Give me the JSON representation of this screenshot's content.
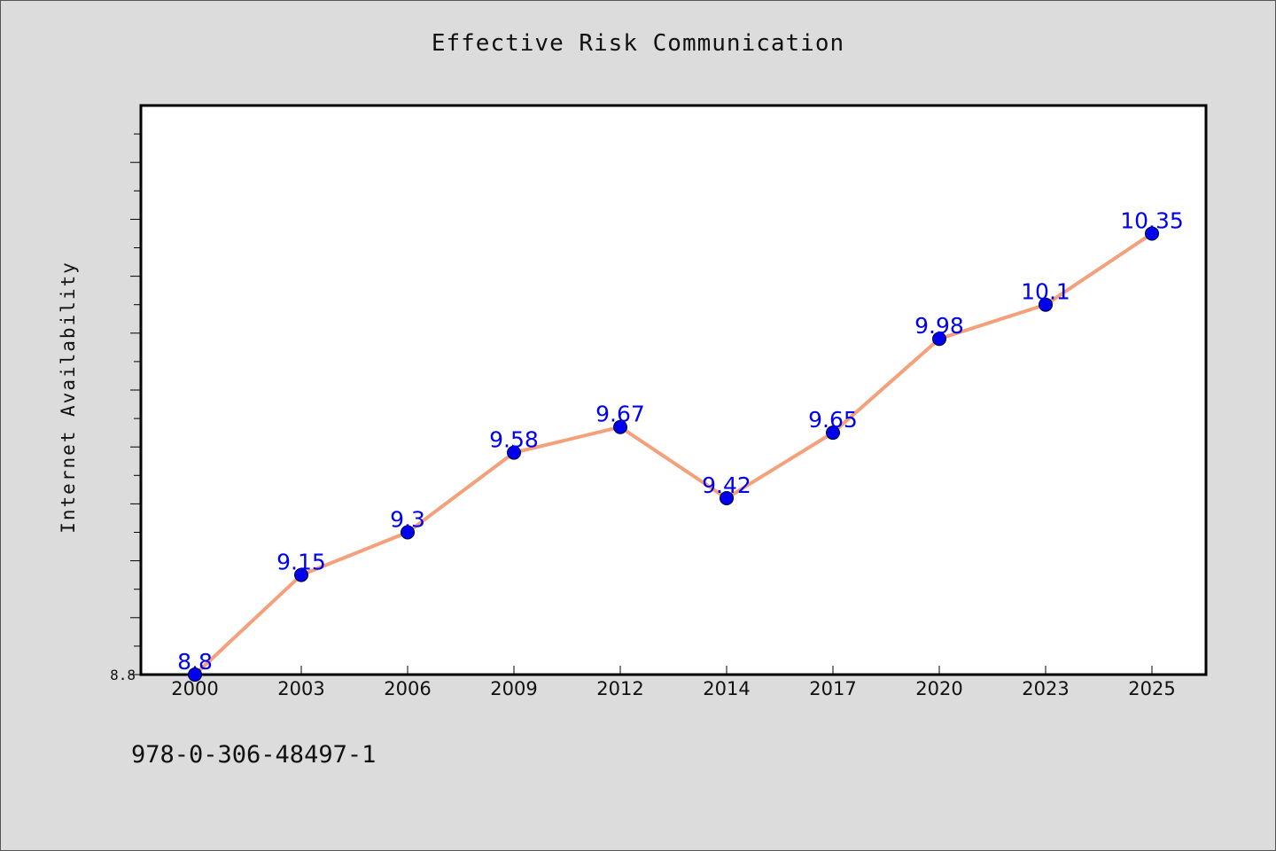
{
  "chart_data": {
    "type": "line",
    "title": "Effective Risk Communication",
    "xlabel": "",
    "ylabel": "Internet Availability",
    "categories": [
      "2000",
      "2003",
      "2006",
      "2009",
      "2012",
      "2014",
      "2017",
      "2020",
      "2023",
      "2025"
    ],
    "series": [
      {
        "values": [
          8.8,
          9.15,
          9.3,
          9.58,
          9.67,
          9.42,
          9.65,
          9.98,
          10.1,
          10.35
        ]
      }
    ],
    "data_labels": [
      "8.8",
      "9.15",
      "9.3",
      "9.58",
      "9.67",
      "9.42",
      "9.65",
      "9.98",
      "10.1",
      "10.35"
    ],
    "y_tick_labels": [
      "8.8"
    ],
    "ylim": [
      8.8,
      10.8
    ],
    "grid": false,
    "line_color": "#f4a07a",
    "marker_color": "#0000ee",
    "label_color": "#0000ee"
  },
  "footer_text": "978-0-306-48497-1"
}
